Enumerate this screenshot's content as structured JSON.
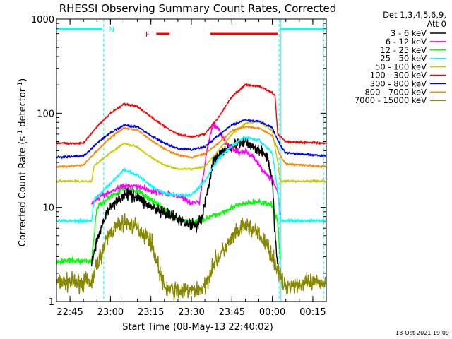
{
  "chart_data": {
    "type": "line",
    "title": "RHESSI Observing Summary Count Rates, Corrected",
    "xlabel": "Start Time (08-May-13 22:40:02)",
    "ylabel_main": "Corrected Count Rate (s",
    "ylabel_mid": " detector",
    "ylabel_end": ")",
    "ylabel_sup": "-1",
    "yscale": "log",
    "ylim": [
      1,
      1000
    ],
    "xlim_minutes": [
      0,
      100
    ],
    "y_ticks": [
      {
        "value": 1,
        "label": "1"
      },
      {
        "value": 10,
        "label": "10"
      },
      {
        "value": 100,
        "label": "100"
      },
      {
        "value": 1000,
        "label": "1000"
      }
    ],
    "x_ticks": [
      {
        "minutes": 5,
        "label": "22:45"
      },
      {
        "minutes": 20,
        "label": "23:00"
      },
      {
        "minutes": 35,
        "label": "23:15"
      },
      {
        "minutes": 50,
        "label": "23:30"
      },
      {
        "minutes": 65,
        "label": "23:45"
      },
      {
        "minutes": 80,
        "label": "00:00"
      },
      {
        "minutes": 95,
        "label": "00:15"
      }
    ],
    "legend_header": [
      "Det 1,3,4,5,6,9,",
      "Att 0"
    ],
    "footer_date": "18-Oct-2021 19:09",
    "flags": {
      "night_label": "N",
      "flare_label": "F",
      "night_color": "#00ffff",
      "flare_color": "#ff0000",
      "night_bars_min": [
        [
          0,
          17
        ],
        [
          83,
          100
        ]
      ],
      "flare_bars_min": [
        [
          37,
          42
        ],
        [
          57,
          82
        ]
      ],
      "night_boundaries_min": [
        17.5,
        82.5,
        99
      ]
    },
    "series": [
      {
        "name": "3 - 6 keV",
        "color": "#000000",
        "noise": 0.1,
        "x": [
          13,
          15,
          18,
          22,
          27,
          30,
          33,
          38,
          43,
          47,
          52,
          54,
          56,
          58,
          62,
          66,
          70,
          74,
          78,
          80,
          81,
          82
        ],
        "y": [
          2.5,
          4.5,
          8,
          12,
          14,
          13,
          11,
          9,
          8,
          7,
          6.5,
          8,
          15,
          30,
          40,
          45,
          50,
          42,
          35,
          20,
          5,
          2.5
        ]
      },
      {
        "name": "6 - 12 keV",
        "color": "#ff00ff",
        "noise": 0.05,
        "x": [
          13,
          15,
          20,
          25,
          30,
          35,
          40,
          43,
          46,
          50,
          53,
          56,
          58,
          60,
          62,
          65,
          68,
          70,
          73,
          76,
          78,
          80,
          82,
          83
        ],
        "y": [
          11,
          12.5,
          14.5,
          17,
          17,
          15,
          14,
          13.5,
          13,
          11,
          11.5,
          45,
          75,
          68,
          52,
          42,
          38,
          40,
          34,
          26,
          22,
          20,
          15,
          8
        ]
      },
      {
        "name": "12 - 25 keV",
        "color": "#00ff00",
        "noise": 0.05,
        "x": [
          0,
          13,
          15,
          20,
          25,
          30,
          35,
          40,
          45,
          50,
          55,
          60,
          65,
          70,
          75,
          80,
          82,
          83
        ],
        "y": [
          2.7,
          2.7,
          10,
          13,
          16,
          15,
          12,
          9.5,
          7.5,
          7,
          7.5,
          8.5,
          10,
          11,
          11.5,
          10.5,
          7,
          2.7
        ]
      },
      {
        "name": "25 - 50 keV",
        "color": "#00ffff",
        "noise": 0.03,
        "x": [
          0,
          13,
          14,
          20,
          25,
          30,
          35,
          40,
          45,
          50,
          55,
          60,
          65,
          70,
          75,
          80,
          82,
          83,
          100
        ],
        "y": [
          7.2,
          7.2,
          12,
          18,
          25,
          22,
          17,
          14,
          13.5,
          13.5,
          19,
          33,
          45,
          55,
          52,
          38,
          15,
          7.2,
          7.2
        ]
      },
      {
        "name": "50 - 100 keV",
        "color": "#cccc00",
        "noise": 0.02,
        "x": [
          0,
          13,
          14,
          20,
          25,
          30,
          35,
          40,
          45,
          50,
          55,
          60,
          65,
          70,
          75,
          80,
          82,
          83,
          100
        ],
        "y": [
          19,
          19,
          28,
          38,
          48,
          44,
          34,
          28,
          25.5,
          25.5,
          27,
          40,
          60,
          78,
          82,
          65,
          30,
          19,
          19
        ]
      },
      {
        "name": "100 - 300 keV",
        "color": "#ff0000",
        "noise": 0.02,
        "x": [
          0,
          10,
          15,
          20,
          25,
          30,
          35,
          40,
          45,
          50,
          55,
          60,
          65,
          70,
          75,
          80,
          81,
          82,
          85,
          100
        ],
        "y": [
          48,
          48,
          72,
          100,
          125,
          118,
          92,
          72,
          60,
          56,
          60,
          90,
          150,
          200,
          195,
          165,
          155,
          60,
          50,
          48
        ]
      },
      {
        "name": "300 - 800 keV",
        "color": "#0000ff",
        "noise": 0.02,
        "x": [
          0,
          10,
          15,
          20,
          25,
          30,
          35,
          40,
          45,
          50,
          55,
          60,
          65,
          70,
          75,
          80,
          83,
          85,
          100
        ],
        "y": [
          34,
          35,
          48,
          62,
          75,
          72,
          58,
          48,
          42,
          41,
          44,
          58,
          75,
          85,
          82,
          70,
          45,
          38,
          35
        ]
      },
      {
        "name": "800 - 7000 keV",
        "color": "#ff8800",
        "noise": 0.02,
        "x": [
          0,
          10,
          15,
          20,
          25,
          30,
          35,
          40,
          45,
          50,
          55,
          60,
          65,
          70,
          75,
          80,
          83,
          85,
          100
        ],
        "y": [
          27,
          28,
          40,
          55,
          70,
          66,
          52,
          42,
          36,
          34,
          37,
          48,
          65,
          72,
          70,
          58,
          35,
          29,
          27
        ]
      },
      {
        "name": "7000 - 15000 keV",
        "color": "#888800",
        "noise": 0.15,
        "x": [
          0,
          13,
          15,
          18,
          20,
          25,
          30,
          35,
          38,
          40,
          45,
          50,
          55,
          58,
          62,
          66,
          70,
          74,
          78,
          80,
          82,
          84,
          100
        ],
        "y": [
          1.6,
          1.6,
          2.5,
          4,
          5.5,
          7,
          6,
          4.5,
          2.2,
          1.4,
          1.3,
          1.3,
          1.4,
          2.5,
          3.5,
          5,
          6.5,
          5.5,
          4,
          3,
          2.2,
          1.5,
          1.6
        ]
      }
    ]
  }
}
